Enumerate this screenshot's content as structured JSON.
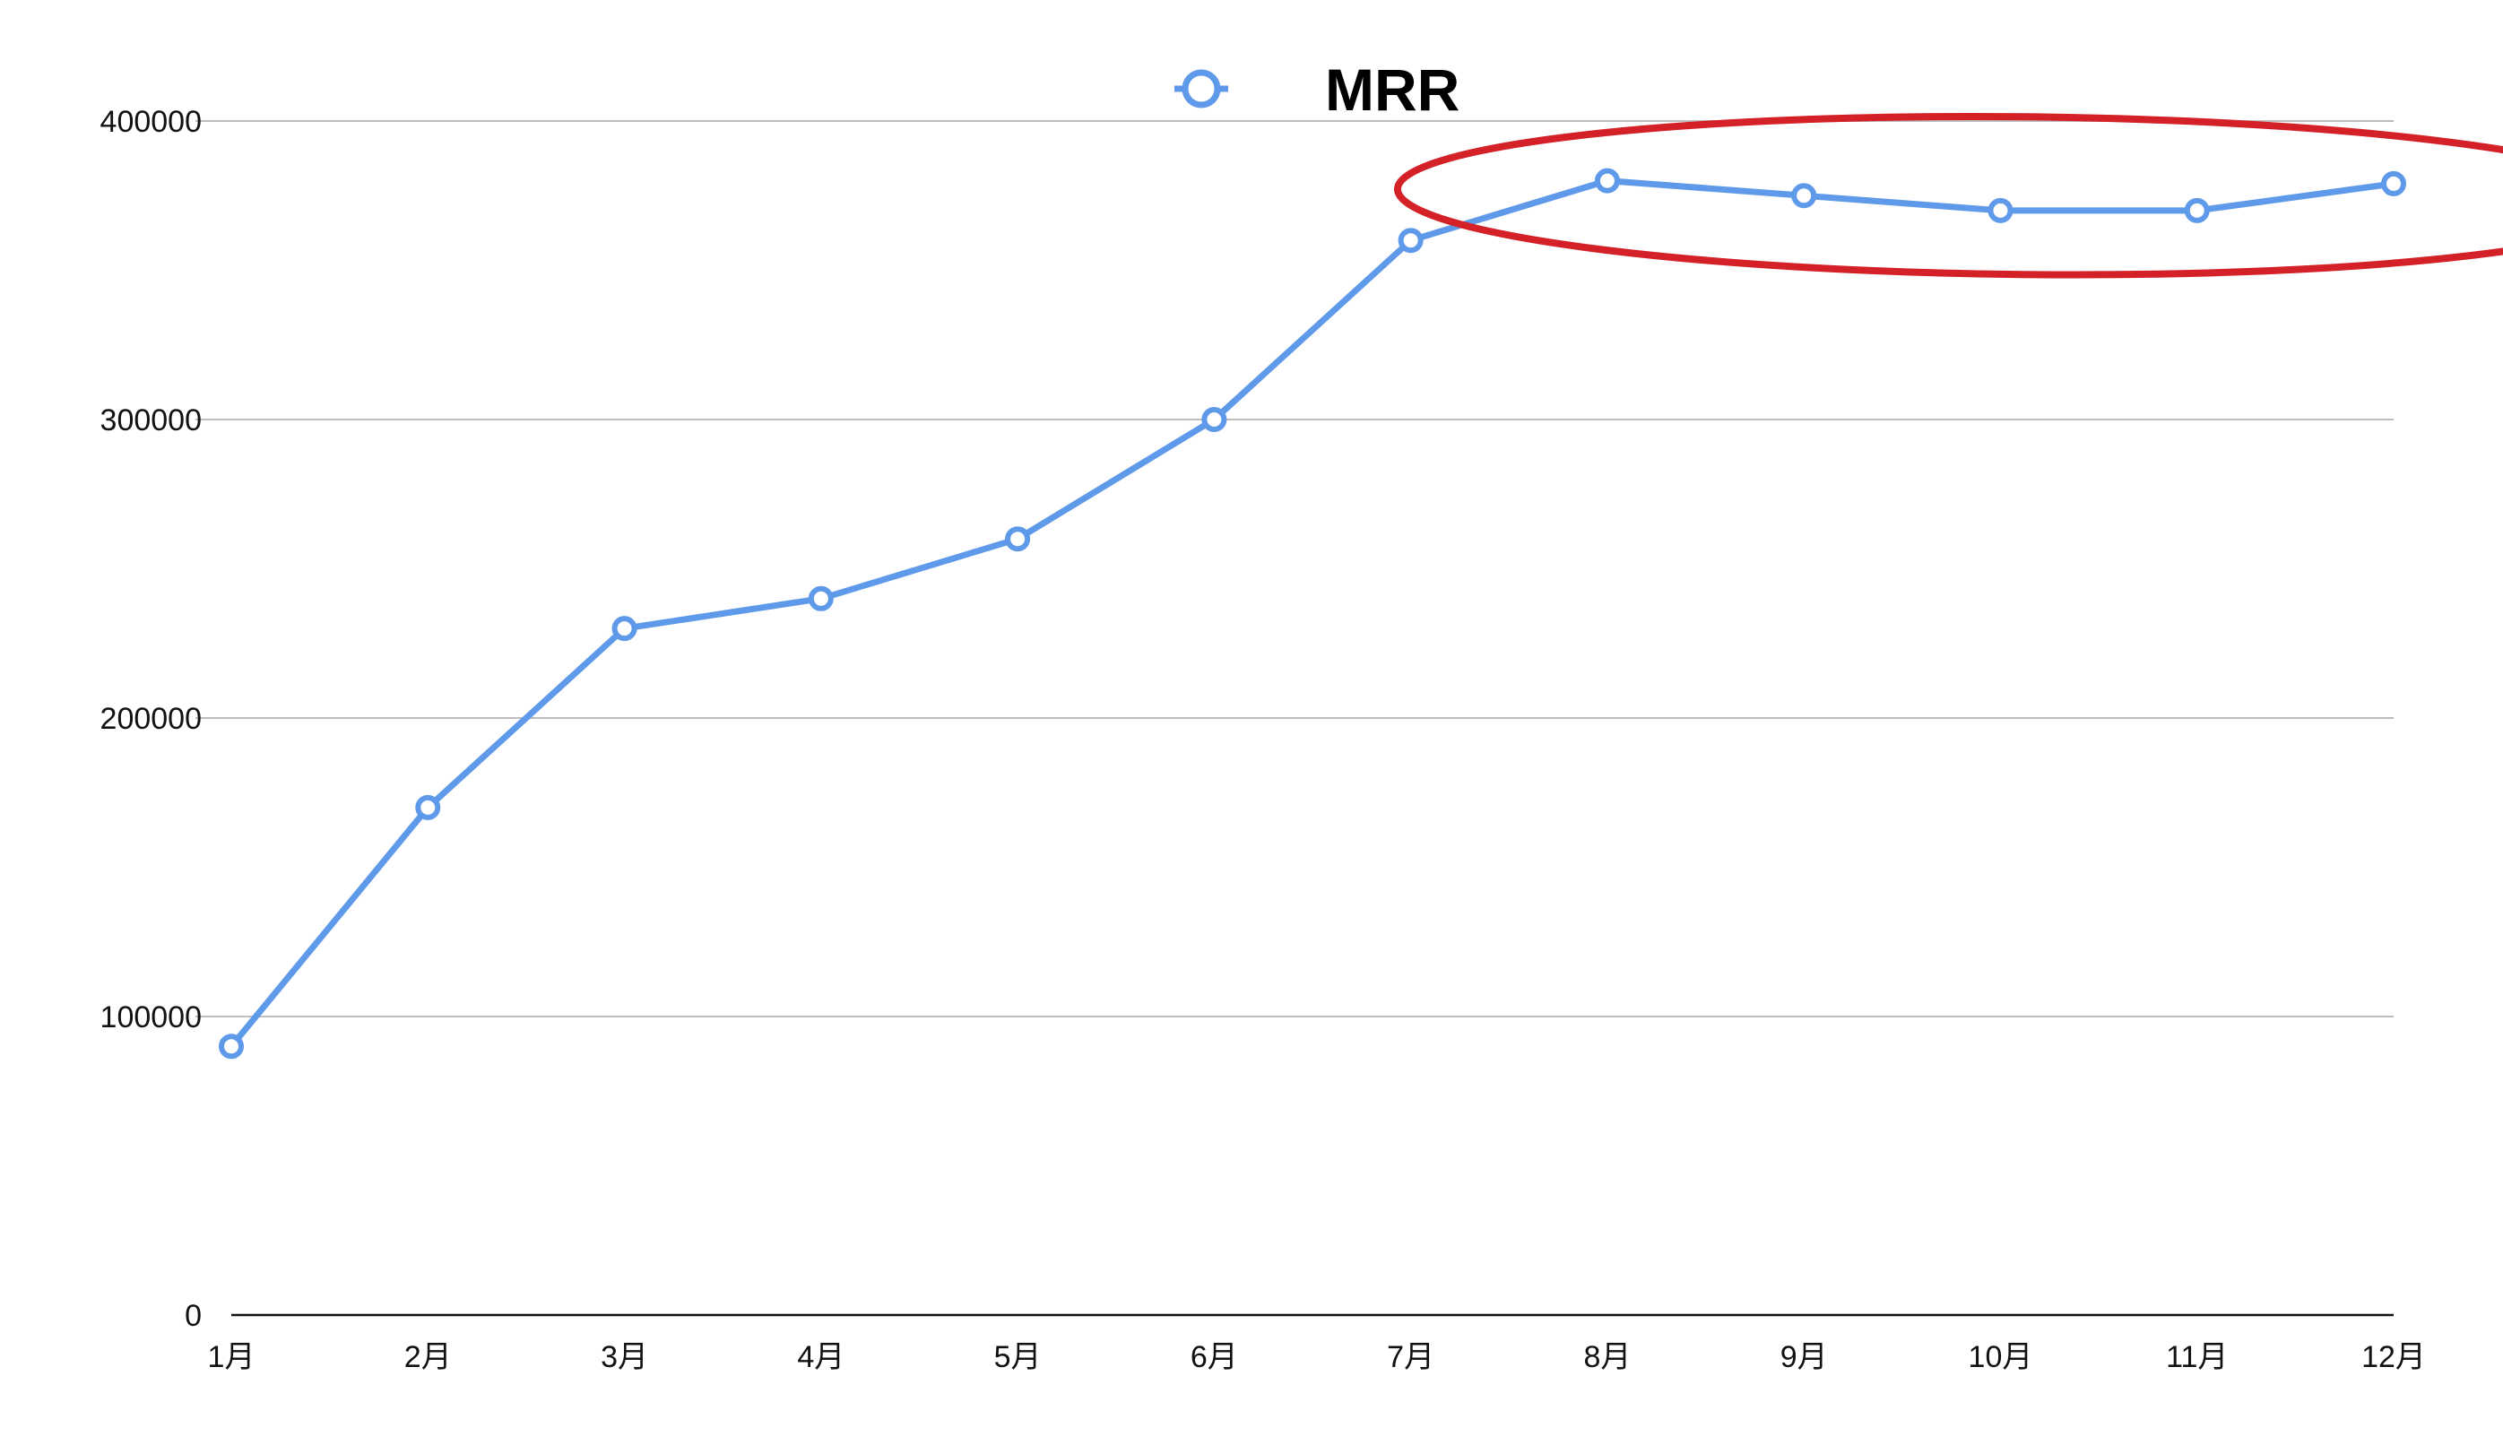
{
  "chart_data": {
    "type": "line",
    "title": "",
    "xlabel": "",
    "ylabel": "",
    "categories": [
      "1月",
      "2月",
      "3月",
      "4月",
      "5月",
      "6月",
      "7月",
      "8月",
      "9月",
      "10月",
      "11月",
      "12月"
    ],
    "series": [
      {
        "name": "MRR",
        "color": "#5e9ae9",
        "values": [
          90000,
          170000,
          230000,
          240000,
          260000,
          300000,
          360000,
          380000,
          375000,
          370000,
          370000,
          379000
        ]
      }
    ],
    "ylim": [
      0,
      400000
    ],
    "yticks": [
      "0",
      "100000",
      "200000",
      "300000",
      "400000"
    ],
    "grid": true,
    "legend": {
      "position": "top-center",
      "marker": "open-circle"
    },
    "annotation": {
      "shape": "ellipse",
      "color": "#d42027",
      "highlight_categories": [
        "8月",
        "9月",
        "10月",
        "11月",
        "12月"
      ]
    }
  }
}
